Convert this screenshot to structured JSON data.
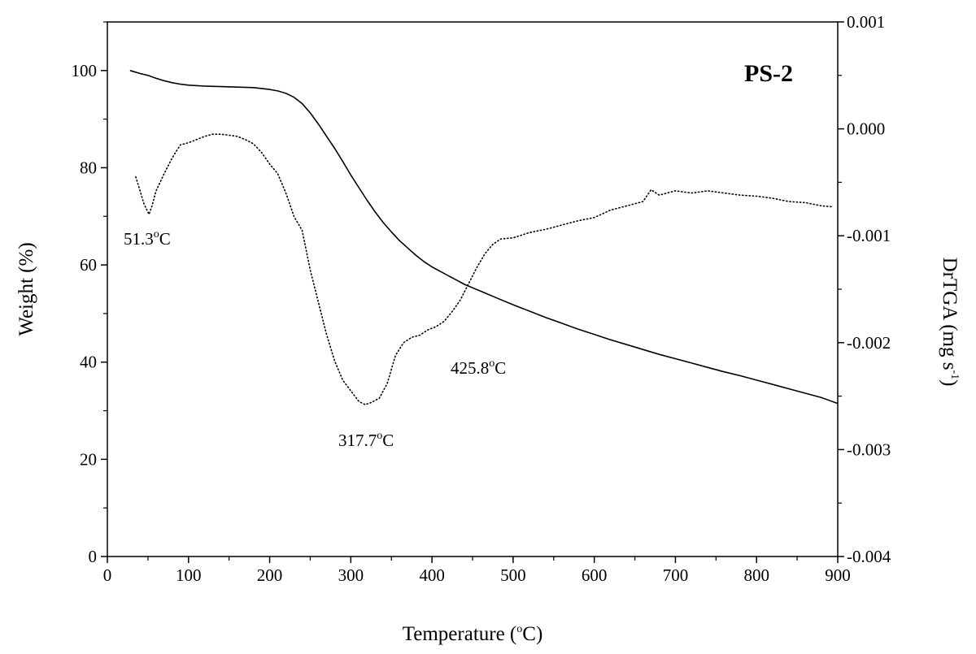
{
  "chart_data": {
    "type": "line",
    "panel_label": "PS-2",
    "xlabel": {
      "main": "Temperature (",
      "sup": "o",
      "end": "C)"
    },
    "ylabel_left": "Weight (%)",
    "ylabel_right": {
      "main": "DrTGA (mg s",
      "sup": "-1",
      "end": ")"
    },
    "xlim": [
      0,
      900
    ],
    "ylim_left": [
      0,
      110
    ],
    "ylim_right": [
      -0.004,
      0.001
    ],
    "x_ticks": [
      "0",
      "100",
      "200",
      "300",
      "400",
      "500",
      "600",
      "700",
      "800",
      "900"
    ],
    "y_left_ticks": [
      "0",
      "20",
      "40",
      "60",
      "80",
      "100"
    ],
    "y_right_ticks": [
      "-0.004",
      "-0.003",
      "-0.002",
      "-0.001",
      "0.000",
      "0.001"
    ],
    "series": [
      {
        "axis": "left",
        "style": "solid",
        "x": [
          28,
          40,
          50,
          60,
          70,
          80,
          90,
          100,
          120,
          140,
          160,
          180,
          200,
          210,
          220,
          230,
          240,
          250,
          260,
          270,
          280,
          290,
          300,
          310,
          320,
          330,
          340,
          350,
          360,
          370,
          380,
          390,
          400,
          410,
          420,
          430,
          440,
          450,
          460,
          470,
          480,
          500,
          520,
          540,
          560,
          580,
          600,
          620,
          640,
          660,
          680,
          700,
          720,
          740,
          760,
          780,
          800,
          820,
          840,
          860,
          880,
          900
        ],
        "y": [
          100,
          99.4,
          99.0,
          98.4,
          97.9,
          97.5,
          97.2,
          97.0,
          96.8,
          96.7,
          96.6,
          96.5,
          96.1,
          95.8,
          95.3,
          94.5,
          93.2,
          91.3,
          89.0,
          86.5,
          84.0,
          81.3,
          78.5,
          75.9,
          73.3,
          70.9,
          68.7,
          66.8,
          65.0,
          63.5,
          62.0,
          60.7,
          59.6,
          58.7,
          57.8,
          56.9,
          56.0,
          55.3,
          54.6,
          53.9,
          53.2,
          51.8,
          50.5,
          49.2,
          48.0,
          46.8,
          45.7,
          44.6,
          43.6,
          42.6,
          41.6,
          40.7,
          39.8,
          38.9,
          38.0,
          37.2,
          36.3,
          35.4,
          34.5,
          33.6,
          32.7,
          31.5
        ]
      },
      {
        "axis": "right",
        "style": "dotted",
        "x": [
          35,
          40,
          45,
          51.3,
          55,
          60,
          70,
          80,
          90,
          100,
          110,
          120,
          130,
          140,
          150,
          160,
          170,
          180,
          190,
          200,
          210,
          220,
          230,
          240,
          250,
          260,
          270,
          280,
          290,
          300,
          310,
          317.7,
          325,
          335,
          345,
          355,
          365,
          375,
          385,
          395,
          405,
          415,
          425.8,
          435,
          445,
          455,
          465,
          475,
          485,
          500,
          520,
          540,
          560,
          580,
          600,
          620,
          640,
          660,
          670,
          680,
          700,
          720,
          740,
          760,
          780,
          800,
          820,
          840,
          860,
          880,
          895
        ],
        "y": [
          -0.00045,
          -0.00057,
          -0.0007,
          -0.0008,
          -0.00072,
          -0.00058,
          -0.00042,
          -0.00027,
          -0.00015,
          -0.00013,
          -0.0001,
          -7e-05,
          -5e-05,
          -5e-05,
          -6e-05,
          -7e-05,
          -0.0001,
          -0.00014,
          -0.00022,
          -0.00033,
          -0.00042,
          -0.0006,
          -0.00082,
          -0.00095,
          -0.00132,
          -0.00162,
          -0.00192,
          -0.00217,
          -0.00235,
          -0.00245,
          -0.00255,
          -0.00258,
          -0.00256,
          -0.00252,
          -0.00238,
          -0.00212,
          -0.002,
          -0.00195,
          -0.00193,
          -0.00188,
          -0.00185,
          -0.0018,
          -0.0017,
          -0.0016,
          -0.00145,
          -0.0013,
          -0.00117,
          -0.00108,
          -0.00103,
          -0.00102,
          -0.00097,
          -0.00094,
          -0.0009,
          -0.00086,
          -0.00083,
          -0.00076,
          -0.00072,
          -0.00068,
          -0.00057,
          -0.00062,
          -0.00058,
          -0.0006,
          -0.00058,
          -0.0006,
          -0.00062,
          -0.00063,
          -0.00065,
          -0.00068,
          -0.00069,
          -0.00072,
          -0.00073
        ]
      }
    ],
    "annotations": [
      {
        "text": "51.3",
        "sup": "o",
        "end": "C"
      },
      {
        "text": "317.7",
        "sup": "o",
        "end": "C"
      },
      {
        "text": "425.8",
        "sup": "o",
        "end": "C"
      }
    ]
  }
}
